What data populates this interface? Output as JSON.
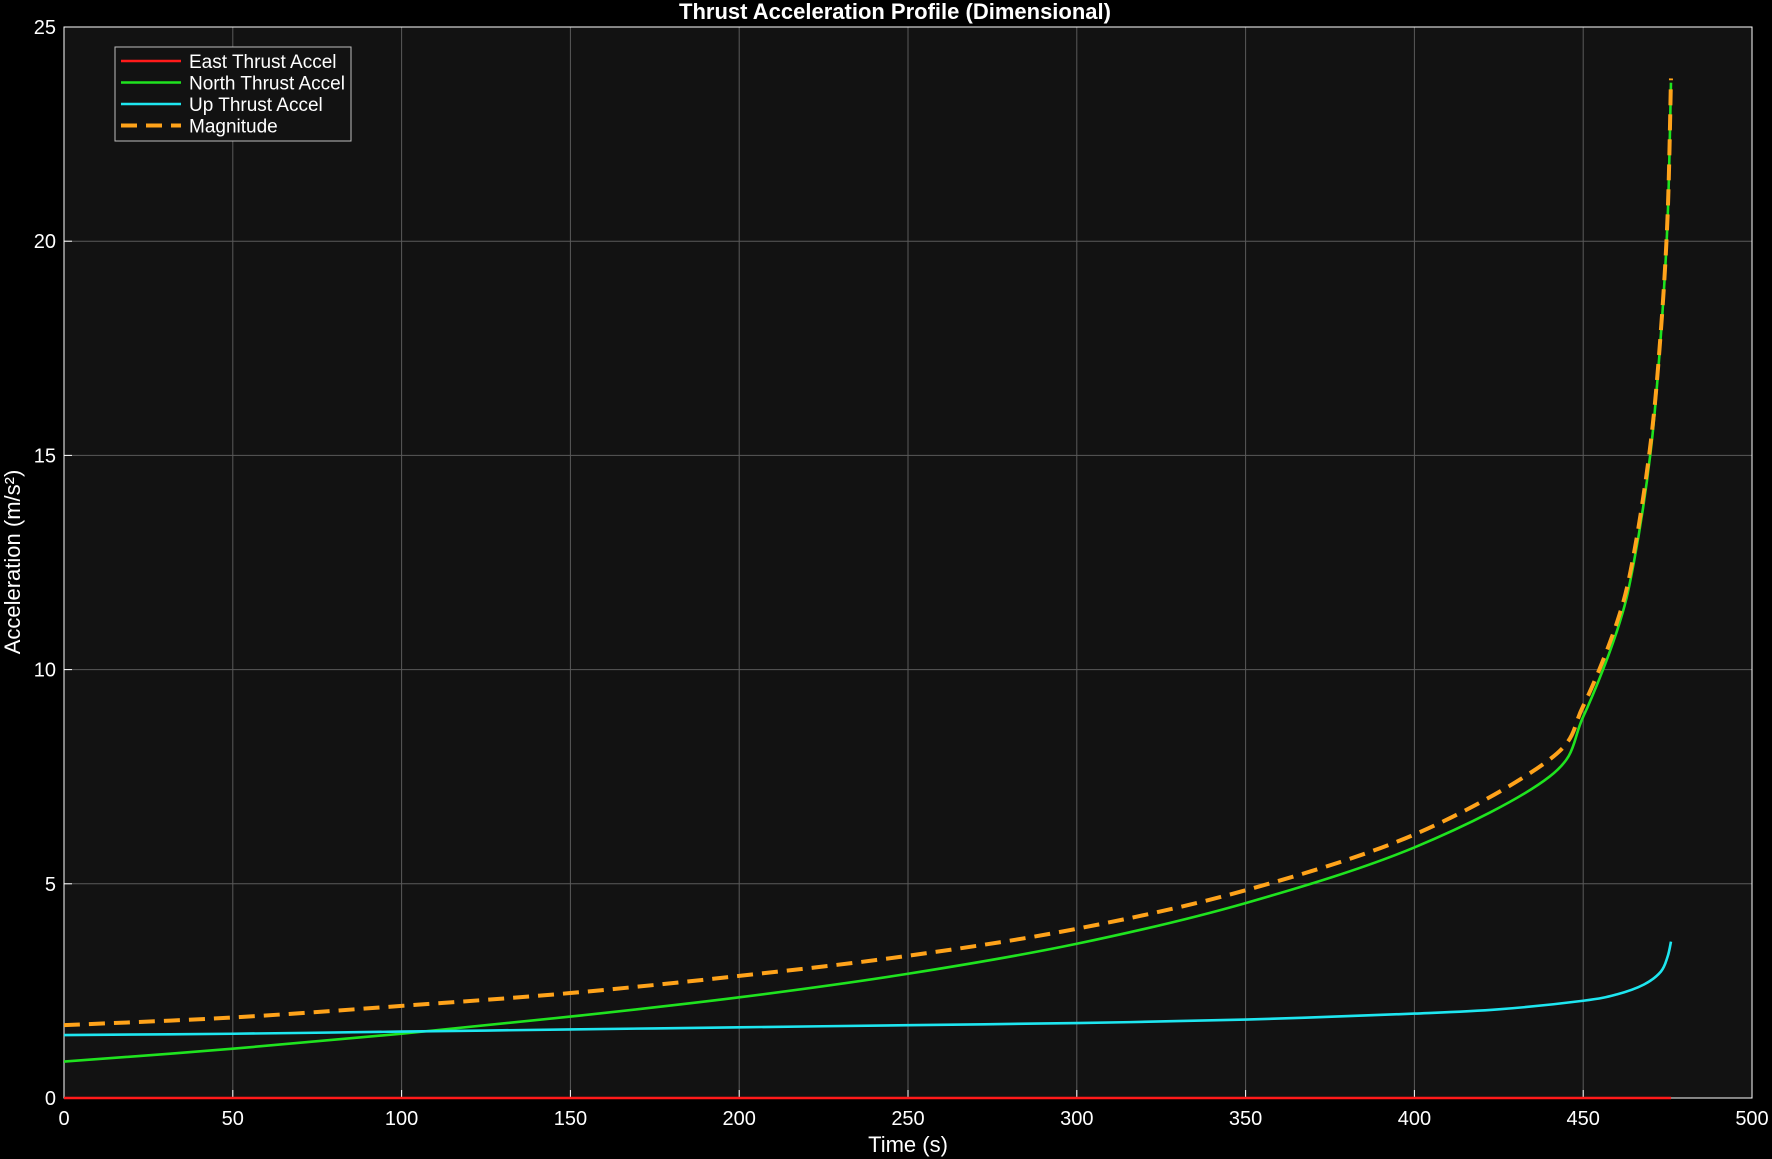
{
  "chart_data": {
    "type": "line",
    "title": "Thrust Acceleration Profile (Dimensional)",
    "xlabel": "Time (s)",
    "ylabel": "Acceleration (m/s²)",
    "xlim": [
      0,
      500
    ],
    "ylim": [
      0,
      25
    ],
    "xticks": [
      0,
      50,
      100,
      150,
      200,
      250,
      300,
      350,
      400,
      450,
      500
    ],
    "yticks": [
      0,
      5,
      10,
      15,
      20,
      25
    ],
    "grid": true,
    "legend_position": "top-left",
    "background_color": "#121212",
    "series": [
      {
        "name": "East Thrust Accel",
        "color": "#ff1a1a",
        "style": "solid",
        "x": [
          0,
          476
        ],
        "y": [
          0,
          0
        ]
      },
      {
        "name": "North Thrust Accel",
        "color": "#1fe31f",
        "style": "solid",
        "x": [
          0,
          50,
          100,
          150,
          200,
          250,
          300,
          350,
          400,
          440,
          450,
          460,
          465,
          470,
          473,
          475,
          476
        ],
        "y": [
          0.85,
          1.15,
          1.5,
          1.9,
          2.35,
          2.9,
          3.6,
          4.55,
          5.85,
          7.5,
          8.9,
          10.9,
          12.5,
          15.1,
          17.8,
          20.5,
          23.7
        ]
      },
      {
        "name": "Up Thrust Accel",
        "color": "#1ee6f0",
        "style": "solid",
        "x": [
          0,
          50,
          100,
          150,
          200,
          250,
          300,
          350,
          400,
          425,
          450,
          460,
          468,
          473,
          475,
          476
        ],
        "y": [
          1.47,
          1.5,
          1.55,
          1.6,
          1.65,
          1.7,
          1.75,
          1.83,
          1.97,
          2.07,
          2.27,
          2.42,
          2.65,
          2.95,
          3.3,
          3.65
        ]
      },
      {
        "name": "Magnitude",
        "color": "#ffa31a",
        "style": "dashed",
        "x": [
          0,
          50,
          100,
          150,
          200,
          250,
          300,
          350,
          400,
          440,
          450,
          460,
          465,
          470,
          473,
          475,
          476
        ],
        "y": [
          1.7,
          1.88,
          2.15,
          2.45,
          2.85,
          3.32,
          3.95,
          4.85,
          6.15,
          7.9,
          9.15,
          11.1,
          12.7,
          15.3,
          17.9,
          20.6,
          23.8
        ]
      }
    ]
  }
}
